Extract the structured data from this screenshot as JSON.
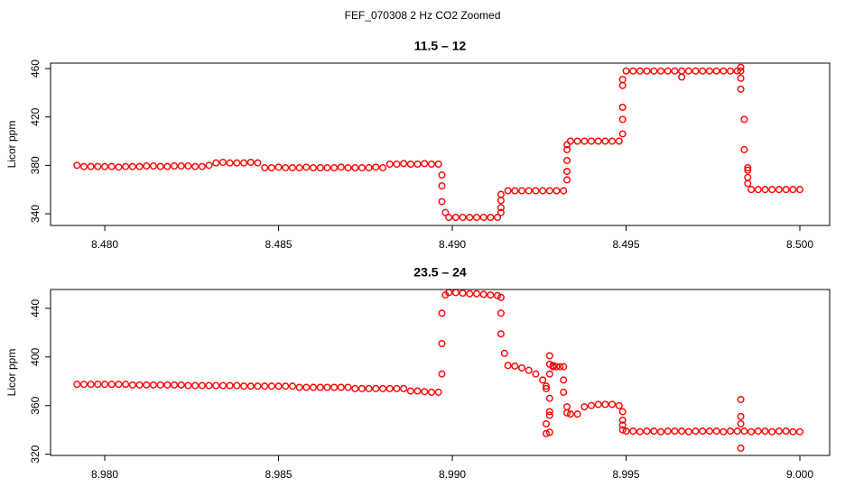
{
  "title": "FEF_070308 2 Hz CO2 Zoomed",
  "chart_data": [
    {
      "type": "scatter",
      "title": "11.5 – 12",
      "ylabel": "Licor ppm",
      "color": "#ff0000",
      "xlim": [
        8.47844,
        8.500857
      ],
      "ylim": [
        330.3,
        464.5
      ],
      "xticks": [
        {
          "value": 8.48,
          "label": "8.480"
        },
        {
          "value": 8.485,
          "label": "8.485"
        },
        {
          "value": 8.49,
          "label": "8.490"
        },
        {
          "value": 8.495,
          "label": "8.495"
        },
        {
          "value": 8.5,
          "label": "8.500"
        }
      ],
      "yticks": [
        340,
        380,
        420,
        460
      ],
      "x": [
        8.4792,
        8.4794,
        8.4796,
        8.4798,
        8.48,
        8.4802,
        8.4804,
        8.4806,
        8.4808,
        8.481,
        8.4812,
        8.4814,
        8.4816,
        8.4818,
        8.482,
        8.4822,
        8.4824,
        8.4826,
        8.4828,
        8.483,
        8.4832,
        8.4834,
        8.4836,
        8.4838,
        8.484,
        8.4842,
        8.4844,
        8.4846,
        8.4848,
        8.485,
        8.4852,
        8.4854,
        8.4856,
        8.4858,
        8.486,
        8.4862,
        8.4864,
        8.4866,
        8.4868,
        8.487,
        8.4872,
        8.4874,
        8.4876,
        8.4878,
        8.488,
        8.4882,
        8.4884,
        8.4886,
        8.4888,
        8.489,
        8.4892,
        8.4894,
        8.4896,
        8.4897,
        8.4897,
        8.4897,
        8.4898,
        8.4899,
        8.4901,
        8.4903,
        8.4905,
        8.4907,
        8.4909,
        8.4911,
        8.4913,
        8.4914,
        8.4914,
        8.4914,
        8.4914,
        8.4916,
        8.4918,
        8.492,
        8.4922,
        8.4924,
        8.4926,
        8.4928,
        8.493,
        8.4932,
        8.4933,
        8.4933,
        8.4933,
        8.4933,
        8.4933,
        8.4934,
        8.4936,
        8.4938,
        8.494,
        8.4942,
        8.4944,
        8.4946,
        8.4948,
        8.4949,
        8.4949,
        8.4949,
        8.4949,
        8.4949,
        8.495,
        8.4952,
        8.4954,
        8.4956,
        8.4958,
        8.496,
        8.4962,
        8.4964,
        8.4966,
        8.4968,
        8.497,
        8.4972,
        8.4974,
        8.4976,
        8.4978,
        8.498,
        8.4982,
        8.4966,
        8.4983,
        8.4983,
        8.4983,
        8.4983,
        8.4984,
        8.4984,
        8.4985,
        8.4985,
        8.4985,
        8.4985,
        8.4986,
        8.4988,
        8.499,
        8.4992,
        8.4994,
        8.4996,
        8.4998,
        8.5
      ],
      "values": [
        380,
        379,
        379,
        379,
        379,
        379,
        378.5,
        379,
        379,
        379,
        379.5,
        379.5,
        379,
        379,
        379.5,
        379.5,
        379.5,
        379,
        379,
        380,
        382,
        382.5,
        382,
        382,
        382,
        382.5,
        382,
        378,
        378,
        378.5,
        378,
        378,
        378,
        378.5,
        378,
        378,
        378,
        378,
        378.5,
        378,
        378,
        378,
        378,
        378.5,
        378,
        381,
        381,
        381.5,
        381,
        381,
        381.5,
        381,
        381,
        372,
        363,
        350,
        341,
        337,
        337,
        337,
        337,
        337,
        337,
        337,
        337,
        341,
        345,
        351,
        356,
        359,
        359,
        359,
        359,
        359,
        359,
        359,
        359,
        359,
        368,
        375,
        384,
        393,
        397,
        400,
        400,
        400,
        400,
        400,
        400,
        400,
        400,
        406,
        418,
        428,
        446,
        451,
        458,
        458,
        458,
        458,
        458,
        458,
        458,
        458,
        458,
        458,
        458,
        458,
        458,
        458,
        458,
        458,
        458,
        453,
        461,
        458,
        452,
        443,
        418,
        393,
        378,
        376,
        370,
        365,
        360,
        360,
        360,
        360,
        360,
        360,
        360,
        360
      ]
    },
    {
      "type": "scatter",
      "title": "23.5 – 24",
      "ylabel": "Licor ppm",
      "color": "#ff0000",
      "xlim": [
        8.97844,
        9.000857
      ],
      "ylim": [
        319,
        455.5
      ],
      "xticks": [
        {
          "value": 8.98,
          "label": "8.980"
        },
        {
          "value": 8.985,
          "label": "8.985"
        },
        {
          "value": 8.99,
          "label": "8.990"
        },
        {
          "value": 8.995,
          "label": "8.995"
        },
        {
          "value": 9,
          "label": "9.000"
        }
      ],
      "yticks": [
        320,
        360,
        400,
        440
      ],
      "x": [
        8.9792,
        8.9794,
        8.9796,
        8.9798,
        8.98,
        8.9802,
        8.9804,
        8.9806,
        8.9808,
        8.981,
        8.9812,
        8.9814,
        8.9816,
        8.9818,
        8.982,
        8.9822,
        8.9824,
        8.9826,
        8.9828,
        8.983,
        8.9832,
        8.9834,
        8.9836,
        8.9838,
        8.984,
        8.9842,
        8.9844,
        8.9846,
        8.9848,
        8.985,
        8.9852,
        8.9854,
        8.9856,
        8.9858,
        8.986,
        8.9862,
        8.9864,
        8.9866,
        8.9868,
        8.987,
        8.9872,
        8.9874,
        8.9876,
        8.9878,
        8.988,
        8.9882,
        8.9884,
        8.9886,
        8.9888,
        8.989,
        8.9892,
        8.9894,
        8.9896,
        8.9897,
        8.9897,
        8.9897,
        8.9898,
        8.9899,
        8.9901,
        8.9903,
        8.9905,
        8.9907,
        8.9909,
        8.9911,
        8.9913,
        8.9914,
        8.9914,
        8.9914,
        8.9915,
        8.9916,
        8.9918,
        8.992,
        8.9922,
        8.9924,
        8.9926,
        8.9927,
        8.9927,
        8.9927,
        8.9927,
        8.9928,
        8.9928,
        8.9928,
        8.9928,
        8.9928,
        8.9928,
        8.9928,
        8.9929,
        8.9929,
        8.9929,
        8.993,
        8.9931,
        8.9932,
        8.9932,
        8.9932,
        8.9933,
        8.9933,
        8.9934,
        8.9936,
        8.9938,
        8.994,
        8.9942,
        8.9944,
        8.9946,
        8.9948,
        8.9949,
        8.9949,
        8.9949,
        8.9949,
        8.995,
        8.9952,
        8.9954,
        8.9956,
        8.9958,
        8.996,
        8.9962,
        8.9964,
        8.9966,
        8.9968,
        8.997,
        8.9972,
        8.9974,
        8.9976,
        8.9978,
        8.998,
        8.9982,
        8.9984,
        8.9986,
        8.9988,
        8.999,
        8.9992,
        8.9994,
        8.9996,
        8.9998,
        9,
        8.9983,
        8.9983,
        8.9983,
        8.9983
      ],
      "values": [
        377.5,
        377.5,
        377.5,
        377.5,
        377.5,
        377.5,
        377.5,
        377.5,
        377,
        377,
        377,
        377,
        377,
        377,
        377,
        377,
        376.5,
        376.5,
        376.5,
        376.5,
        376.5,
        376.5,
        376.5,
        376.5,
        376,
        376,
        376,
        376,
        376,
        376,
        376,
        376,
        375,
        375,
        375,
        375,
        375,
        375,
        375,
        375,
        374,
        374,
        374,
        374,
        374,
        374,
        374,
        374,
        372,
        372,
        371.5,
        371,
        371,
        386,
        411,
        436,
        451,
        453,
        453,
        452.5,
        452,
        452,
        451.5,
        451,
        450.5,
        449,
        436,
        419,
        403,
        393,
        392.5,
        391,
        389,
        386,
        381,
        376,
        374,
        345,
        337,
        338,
        352,
        355,
        366,
        386,
        394,
        401,
        393,
        392,
        392,
        392,
        392,
        392,
        381,
        371,
        359,
        354,
        353,
        353,
        359,
        360,
        361,
        361,
        361,
        360,
        355,
        348,
        344,
        340,
        339,
        339,
        338.5,
        339,
        339,
        338.5,
        339,
        339,
        339,
        338.5,
        339,
        339,
        339,
        339,
        338.5,
        339,
        339,
        339,
        338.5,
        339,
        339,
        338.5,
        339,
        339,
        338.5,
        338.5,
        365,
        351,
        345,
        325
      ]
    }
  ]
}
